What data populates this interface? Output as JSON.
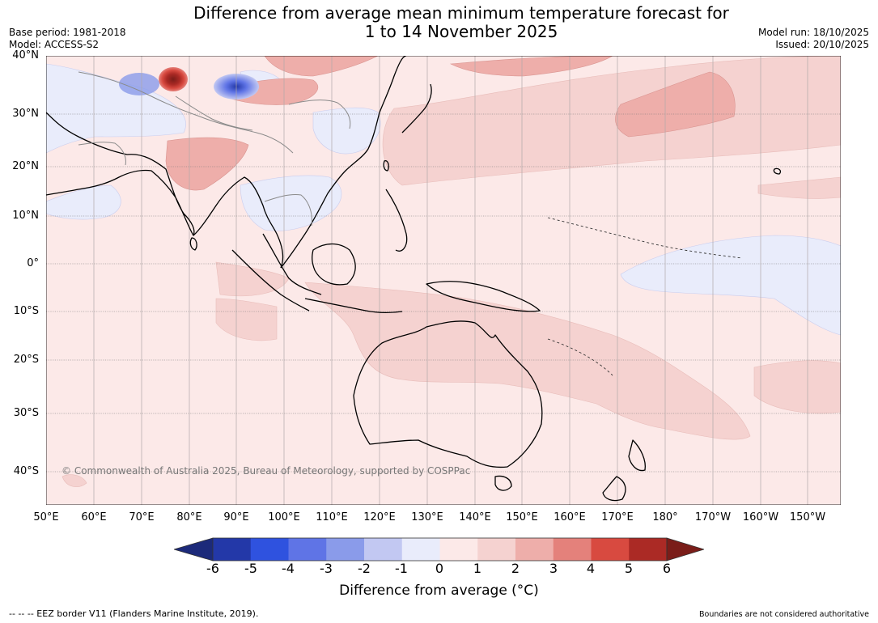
{
  "title": {
    "line1": "Difference from average mean minimum temperature forecast for",
    "line2": "1 to 14 November 2025"
  },
  "meta": {
    "base_period": "Base period: 1981-2018",
    "model": "Model: ACCESS-S2",
    "model_run": "Model run: 18/10/2025",
    "issued": "Issued: 20/10/2025"
  },
  "map": {
    "lat_labels": [
      "40°N",
      "30°N",
      "20°N",
      "10°N",
      "0°",
      "10°S",
      "20°S",
      "30°S",
      "40°S"
    ],
    "lon_labels": [
      "50°E",
      "60°E",
      "70°E",
      "80°E",
      "90°E",
      "100°E",
      "110°E",
      "120°E",
      "130°E",
      "140°E",
      "150°E",
      "160°E",
      "170°E",
      "180°",
      "170°W",
      "160°W",
      "150°W"
    ],
    "copyright": "© Commonwealth of Australia 2025, Bureau of Meteorology, supported by COSPPac"
  },
  "colorbar": {
    "label": "Difference from average (°C)",
    "ticks": [
      "-6",
      "-5",
      "-4",
      "-3",
      "-2",
      "-1",
      "0",
      "1",
      "2",
      "3",
      "4",
      "5",
      "6"
    ],
    "colors": [
      "#1c2a7a",
      "#2338a8",
      "#2f52df",
      "#5f74e6",
      "#8a9bea",
      "#c2c8f2",
      "#e9ecfb",
      "#fce9e8",
      "#f5d2d0",
      "#eeaeaa",
      "#e4817b",
      "#d84a40",
      "#ab2a25",
      "#7a1d19"
    ]
  },
  "footer": {
    "eez": "--  --  -- EEZ border V11 (Flanders Marine Institute, 2019).",
    "boundaries": "Boundaries are not considered authoritative"
  }
}
